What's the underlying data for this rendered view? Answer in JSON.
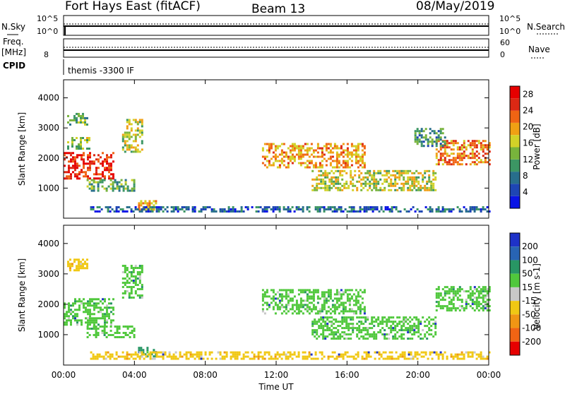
{
  "header": {
    "radar": "Fort Hays East (fitACF)",
    "beam": "Beam 13",
    "date": "08/May/2019"
  },
  "aux": {
    "nsky_label": "N.Sky",
    "nsearch_label": "N.Search",
    "freq_label_1": "Freq.",
    "freq_label_2": "[MHz]",
    "nave_label": "Nave",
    "cpid_label": "CPID",
    "noise_top_tick": "10^5",
    "noise_bottom_tick": "10^0",
    "freq_top_tick": "",
    "freq_bottom_tick": "8",
    "nave_top_tick": "60",
    "nave_bottom_tick": "0",
    "cpid_text": "themis -3300 IF"
  },
  "chart_data": [
    {
      "type": "heatmap",
      "panel": "power",
      "xlabel": "",
      "ylabel": "Slant Range [km]",
      "xlim": [
        0,
        24
      ],
      "ylim": [
        0,
        4600
      ],
      "yticks": [
        1000,
        2000,
        3000,
        4000
      ],
      "colorbar": {
        "label": "Power [dB]",
        "ticks": [
          "4",
          "8",
          "12",
          "16",
          "20",
          "24",
          "28"
        ],
        "range": [
          0,
          30
        ],
        "colors": [
          "#0a14e6",
          "#1e46b4",
          "#286e8c",
          "#3c9664",
          "#78b43c",
          "#d2d228",
          "#f0a014",
          "#f06414",
          "#dc2814",
          "#e60000"
        ]
      },
      "regions": [
        {
          "x0": 0.0,
          "x1": 2.8,
          "y0": 1300,
          "y1": 2200,
          "level": 26
        },
        {
          "x0": 0.2,
          "x1": 1.5,
          "y0": 2300,
          "y1": 2700,
          "level": 14
        },
        {
          "x0": 0.2,
          "x1": 1.3,
          "y0": 3100,
          "y1": 3500,
          "level": 12
        },
        {
          "x0": 1.3,
          "x1": 4.0,
          "y0": 900,
          "y1": 1300,
          "level": 12
        },
        {
          "x0": 3.3,
          "x1": 4.4,
          "y0": 2200,
          "y1": 3300,
          "level": 16
        },
        {
          "x0": 4.2,
          "x1": 5.2,
          "y0": 300,
          "y1": 600,
          "level": 18
        },
        {
          "x0": 11.2,
          "x1": 17.0,
          "y0": 1700,
          "y1": 2500,
          "level": 20
        },
        {
          "x0": 14.0,
          "x1": 21.0,
          "y0": 900,
          "y1": 1600,
          "level": 16
        },
        {
          "x0": 21.0,
          "x1": 24.0,
          "y0": 1800,
          "y1": 2600,
          "level": 22
        },
        {
          "x0": 1.5,
          "x1": 24.0,
          "y0": 200,
          "y1": 400,
          "level": 6
        },
        {
          "x0": 19.8,
          "x1": 21.5,
          "y0": 2400,
          "y1": 3000,
          "level": 10
        }
      ]
    },
    {
      "type": "heatmap",
      "panel": "velocity",
      "xlabel": "Time UT",
      "ylabel": "Slant Range [km]",
      "xlim": [
        0,
        24
      ],
      "ylim": [
        0,
        4600
      ],
      "xticks": [
        "00:00",
        "04:00",
        "08:00",
        "12:00",
        "16:00",
        "20:00",
        "00:00"
      ],
      "yticks": [
        1000,
        2000,
        3000,
        4000
      ],
      "colorbar": {
        "label": "Velocity [m s-1]",
        "ticks": [
          "200",
          "100",
          "50",
          "15",
          "-15",
          "-50",
          "-100",
          "-200"
        ],
        "colors": [
          "#1e32c8",
          "#2864b4",
          "#289664",
          "#50c83c",
          "#c8c8c8",
          "#f0c814",
          "#f09614",
          "#f06414",
          "#e60000"
        ]
      },
      "regions": [
        {
          "x0": 0.0,
          "x1": 2.8,
          "y0": 1300,
          "y1": 2200,
          "level": "15"
        },
        {
          "x0": 0.2,
          "x1": 1.3,
          "y0": 3100,
          "y1": 3500,
          "level": "-50"
        },
        {
          "x0": 1.3,
          "x1": 4.0,
          "y0": 900,
          "y1": 1300,
          "level": "15"
        },
        {
          "x0": 3.3,
          "x1": 4.4,
          "y0": 2200,
          "y1": 3300,
          "level": "15"
        },
        {
          "x0": 4.2,
          "x1": 5.2,
          "y0": 300,
          "y1": 600,
          "level": "50"
        },
        {
          "x0": 11.2,
          "x1": 17.0,
          "y0": 1700,
          "y1": 2500,
          "level": "15"
        },
        {
          "x0": 14.0,
          "x1": 21.0,
          "y0": 900,
          "y1": 1600,
          "level": "15"
        },
        {
          "x0": 21.0,
          "x1": 24.0,
          "y0": 1800,
          "y1": 2600,
          "level": "15"
        },
        {
          "x0": 1.5,
          "x1": 24.0,
          "y0": 200,
          "y1": 450,
          "level": "-50"
        }
      ]
    }
  ]
}
